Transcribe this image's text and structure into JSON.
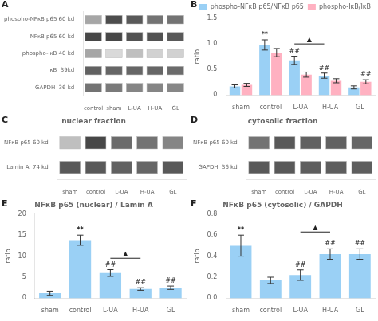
{
  "chart_data": [
    {
      "type": "heatmap",
      "categories": [
        "control",
        "sham",
        "L-UA",
        "H-UA",
        "GL"
      ],
      "rows": [
        "phospho-NFκB p65 60 kd",
        "NFκB p65 60 kd",
        "phospho-IκB 40 kd",
        "IκB  39kd",
        "GAPDH  36 kd"
      ],
      "cells": [
        [
          0.35,
          0.7,
          0.65,
          0.55,
          0.55
        ],
        [
          0.72,
          0.72,
          0.68,
          0.68,
          0.65
        ],
        [
          0.35,
          0.15,
          0.25,
          0.18,
          0.18
        ],
        [
          0.62,
          0.6,
          0.6,
          0.6,
          0.58
        ],
        [
          0.55,
          0.52,
          0.48,
          0.48,
          0.47
        ]
      ],
      "grid": false,
      "annotations": [
        {
          "text": "A"
        }
      ]
    },
    {
      "type": "bar",
      "categories": [
        "sham",
        "control",
        "L-UA",
        "H-UA",
        "GL"
      ],
      "series": [
        {
          "name": "phospho-NFκB p65/NFκB p65",
          "values": [
            0.17,
            0.98,
            0.68,
            0.38,
            0.15
          ],
          "errors": [
            0.03,
            0.1,
            0.08,
            0.05,
            0.03
          ]
        },
        {
          "name": "phospho-IκB/IκB",
          "values": [
            0.2,
            0.83,
            0.4,
            0.28,
            0.26
          ],
          "errors": [
            0.03,
            0.08,
            0.05,
            0.04,
            0.04
          ]
        }
      ],
      "ylabel": "ratio",
      "ylim": [
        0,
        1.5
      ],
      "yticks": [
        0,
        0.5,
        {
          "value": 1,
          "label": "1.0"
        },
        1.5
      ],
      "legend": "upper right",
      "grid": false,
      "annotations": [
        {
          "text": "B"
        },
        {
          "text": "**",
          "category": "control",
          "series": "phospho-NFκB p65/NFκB p65"
        },
        {
          "text": "##",
          "category": "L-UA",
          "series": "phospho-NFκB p65/NFκB p65"
        },
        {
          "text": "##",
          "category": "H-UA",
          "series": "phospho-NFκB p65/NFκB p65"
        },
        {
          "text": "##",
          "category": "GL",
          "series": "phospho-IκB/IκB"
        },
        {
          "text": "▲",
          "from": "L-UA",
          "to": "H-UA",
          "y": 1.0,
          "series": "phospho-NFκB p65/NFκB p65"
        }
      ]
    },
    {
      "type": "heatmap",
      "title": "nuclear fraction",
      "categories": [
        "sham",
        "control",
        "L-UA",
        "H-UA",
        "GL"
      ],
      "rows": [
        "NFκB p65 60 kd",
        "Lamin A  74 kd"
      ],
      "cells": [
        [
          0.25,
          0.72,
          0.58,
          0.55,
          0.48
        ],
        [
          0.65,
          0.65,
          0.62,
          0.6,
          0.65
        ]
      ],
      "grid": false,
      "annotations": [
        {
          "text": "C"
        }
      ]
    },
    {
      "type": "heatmap",
      "title": "cytosolic fraction",
      "categories": [
        "sham",
        "control",
        "L-UA",
        "H-UA",
        "GL"
      ],
      "rows": [
        "NFκB p65 60 kd",
        "GAPDH  36 kd"
      ],
      "cells": [
        [
          0.55,
          0.65,
          0.62,
          0.62,
          0.6
        ],
        [
          0.65,
          0.65,
          0.63,
          0.63,
          0.63
        ]
      ],
      "grid": false,
      "annotations": [
        {
          "text": "D"
        }
      ]
    },
    {
      "type": "bar",
      "title": "NFκB p65 (nuclear) / Lamin A",
      "categories": [
        "sham",
        "control",
        "L-UA",
        "H-UA",
        "GL"
      ],
      "values": [
        1.2,
        13.8,
        6.0,
        2.2,
        2.5
      ],
      "errors": [
        0.5,
        1.2,
        0.8,
        0.3,
        0.4
      ],
      "ylabel": "ratio",
      "ylim": [
        0,
        20
      ],
      "yticks": [
        0,
        5,
        10,
        15,
        20
      ],
      "grid": false,
      "annotations": [
        {
          "text": "E"
        },
        {
          "text": "**",
          "category": "control"
        },
        {
          "text": "##",
          "category": "L-UA"
        },
        {
          "text": "##",
          "category": "H-UA"
        },
        {
          "text": "##",
          "category": "GL"
        },
        {
          "text": "▲",
          "from": "L-UA",
          "to": "H-UA",
          "y": 9.5
        }
      ]
    },
    {
      "type": "bar",
      "title": "NFκB p65 (cytosolic) / GAPDH",
      "categories": [
        "sham",
        "control",
        "L-UA",
        "H-UA",
        "GL"
      ],
      "values": [
        0.5,
        0.17,
        0.22,
        0.42,
        0.42
      ],
      "errors": [
        0.1,
        0.03,
        0.05,
        0.05,
        0.05
      ],
      "ylabel": "ratio",
      "ylim": [
        0,
        0.8
      ],
      "yticks": [
        {
          "value": 0,
          "label": "0.0"
        },
        0.2,
        0.4,
        0.6,
        0.8
      ],
      "grid": false,
      "annotations": [
        {
          "text": "F"
        },
        {
          "text": "**",
          "category": "sham"
        },
        {
          "text": "##",
          "category": "L-UA"
        },
        {
          "text": "##",
          "category": "H-UA"
        },
        {
          "text": "##",
          "category": "GL"
        },
        {
          "text": "▲",
          "from": "L-UA",
          "to": "H-UA",
          "y": 0.63
        }
      ]
    }
  ]
}
